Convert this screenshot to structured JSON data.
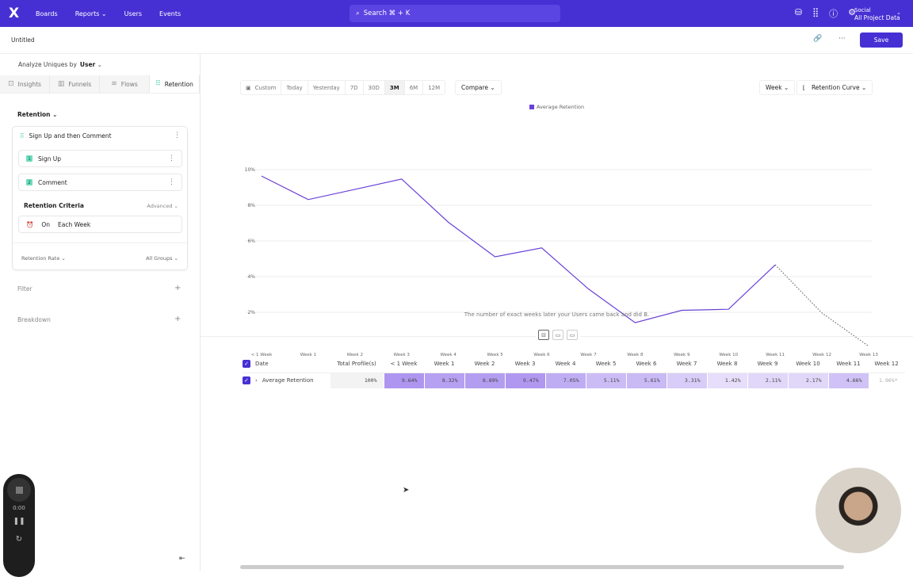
{
  "topbar": {
    "logo": "X",
    "nav": [
      "Boards",
      "Reports",
      "Users",
      "Events"
    ],
    "search_placeholder": "Search ⌘ + K",
    "project_name": "Social",
    "project_data": "All Project Data"
  },
  "subbar": {
    "title": "Untitled",
    "save_label": "Save"
  },
  "sidebar": {
    "analyze_label": "Analyze Uniques by",
    "analyze_value": "User",
    "tabs": [
      {
        "label": "Insights",
        "icon": "📈"
      },
      {
        "label": "Funnels",
        "icon": "▥"
      },
      {
        "label": "Flows",
        "icon": "≋"
      },
      {
        "label": "Retention",
        "icon": "⠿"
      }
    ],
    "section": "Retention",
    "card_title": "Sign Up and then Comment",
    "steps": [
      {
        "n": "1",
        "label": "Sign Up"
      },
      {
        "n": "2",
        "label": "Comment"
      }
    ],
    "criteria_label": "Retention Criteria",
    "advanced": "Advanced",
    "criteria_on": "On",
    "criteria_value": "Each Week",
    "rate": "Retention Rate",
    "groups": "All Groups",
    "filter": "Filter",
    "breakdown": "Breakdown"
  },
  "toolbar": {
    "custom": "Custom",
    "ranges": [
      "Today",
      "Yesterday",
      "7D",
      "30D",
      "3M",
      "6M",
      "12M"
    ],
    "active_range": "3M",
    "compare": "Compare",
    "interval": "Week",
    "chart_type": "Retention Curve"
  },
  "chart_data": {
    "type": "line",
    "legend": [
      "Average Retention"
    ],
    "color": "#6a41d8",
    "x": [
      "< 1 Week",
      "Week 1",
      "Week 2",
      "Week 3",
      "Week 4",
      "Week 5",
      "Week 6",
      "Week 7",
      "Week 8",
      "Week 9",
      "Week 10",
      "Week 11",
      "Week 12",
      "Week 13"
    ],
    "values": [
      9.64,
      8.32,
      8.89,
      9.47,
      7.05,
      5.11,
      5.61,
      3.31,
      1.42,
      2.11,
      2.17,
      4.66,
      1.96,
      0.1
    ],
    "incomplete_from_index": 11,
    "yticks": [
      "2%",
      "4%",
      "6%",
      "8%",
      "10%"
    ],
    "ylim": [
      0,
      10
    ],
    "xlabel": "The number of exact weeks later your Users came back and did B."
  },
  "table": {
    "headers": [
      "Date",
      "Total Profile(s)",
      "< 1 Week",
      "Week 1",
      "Week 2",
      "Week 3",
      "Week 4",
      "Week 5",
      "Week 6",
      "Week 7",
      "Week 8",
      "Week 9",
      "Week 10",
      "Week 11",
      "Week 12"
    ],
    "row": {
      "label": "Average Retention",
      "total": "100%",
      "cells": [
        "9.64%",
        "8.32%",
        "8.89%",
        "9.47%",
        "7.05%",
        "5.11%",
        "5.61%",
        "3.31%",
        "1.42%",
        "2.11%",
        "2.17%",
        "4.66%",
        "1.96%*"
      ]
    }
  },
  "recorder": {
    "time": "0:00"
  }
}
